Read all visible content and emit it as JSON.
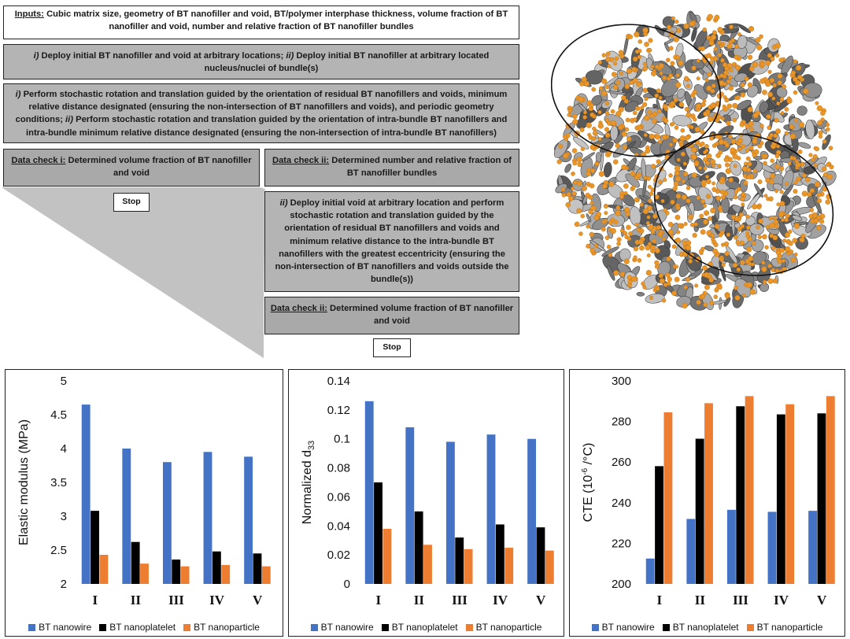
{
  "flow": {
    "inputs_label": "Inputs:",
    "inputs_text": " Cubic matrix size, geometry of BT nanofiller and void, BT/polymer interphase thickness, volume fraction of BT nanofiller and void, number and relative fraction of BT nanofiller bundles",
    "step1_a_num": "i)",
    "step1_a": " Deploy initial BT nanofiller and void at arbitrary locations; ",
    "step1_b_num": "ii)",
    "step1_b": " Deploy initial BT nanofiller at arbitrary located nucleus/nuclei of bundle(s)",
    "step2_a_num": "i)",
    "step2_a": " Perform stochastic rotation and translation guided by the orientation of residual BT nanofillers and voids, minimum relative distance designated (ensuring the non-intersection of BT nanofillers and voids), and periodic geometry conditions; ",
    "step2_b_num": "ii)",
    "step2_b": " Perform stochastic rotation and translation guided by the orientation of intra-bundle BT nanofillers and intra-bundle minimum relative distance designated (ensuring the non-intersection of intra-bundle BT nanofillers)",
    "check1_label": "Data check i:",
    "check1_text": " Determined volume fraction of BT nanofiller and void",
    "check2_label": "Data check ii:",
    "check2_text": " Determined number and relative fraction of BT nanofiller bundles",
    "step3_num": "ii)",
    "step3": " Deploy initial void at arbitrary location and perform stochastic rotation and translation guided by the orientation of residual BT nanofillers and voids and minimum relative distance to the intra-bundle BT nanofillers with the greatest eccentricity (ensuring the non-intersection of BT nanofillers and voids outside the bundle(s))",
    "check3_label": "Data check ii:",
    "check3_text": " Determined volume fraction of BT nanofiller and void",
    "stop1": "Stop",
    "stop2": "Stop"
  },
  "colors": {
    "nanowire": "#4472c4",
    "nanoplatelet": "#000000",
    "nanoparticle": "#ed7d31"
  },
  "chart_data": [
    {
      "type": "bar",
      "categories": [
        "I",
        "II",
        "III",
        "IV",
        "V"
      ],
      "ylabel": "Elastic modulus (MPa)",
      "ylim": [
        2,
        5
      ],
      "yticks": [
        "2",
        "2.5",
        "3",
        "3.5",
        "4",
        "4.5",
        "5"
      ],
      "series": [
        {
          "name": "BT nanowire",
          "values": [
            4.65,
            4.0,
            3.8,
            3.95,
            3.88
          ]
        },
        {
          "name": "BT nanoplatelet",
          "values": [
            3.08,
            2.62,
            2.36,
            2.48,
            2.45
          ]
        },
        {
          "name": "BT nanoparticle",
          "values": [
            2.43,
            2.3,
            2.26,
            2.28,
            2.26
          ]
        }
      ],
      "legend": "bottom"
    },
    {
      "type": "bar",
      "categories": [
        "I",
        "II",
        "III",
        "IV",
        "V"
      ],
      "ylabel": "Normalized d",
      "ylabel_sub": "33",
      "ylim": [
        0,
        0.14
      ],
      "yticks": [
        "0",
        "0.02",
        "0.04",
        "0.06",
        "0.08",
        "0.1",
        "0.12",
        "0.14"
      ],
      "series": [
        {
          "name": "BT nanowire",
          "values": [
            0.126,
            0.108,
            0.098,
            0.103,
            0.1
          ]
        },
        {
          "name": "BT nanoplatelet",
          "values": [
            0.07,
            0.05,
            0.032,
            0.041,
            0.039
          ]
        },
        {
          "name": "BT nanoparticle",
          "values": [
            0.038,
            0.027,
            0.024,
            0.025,
            0.023
          ]
        }
      ],
      "legend": "bottom"
    },
    {
      "type": "bar",
      "categories": [
        "I",
        "II",
        "III",
        "IV",
        "V"
      ],
      "ylabel": "CTE (10",
      "ylabel_sup": "-6",
      "ylabel_tail": " /°C)",
      "ylim": [
        200,
        300
      ],
      "yticks": [
        "200",
        "220",
        "240",
        "260",
        "280",
        "300"
      ],
      "series": [
        {
          "name": "BT nanowire",
          "values": [
            212.5,
            232,
            236.5,
            235.5,
            236
          ]
        },
        {
          "name": "BT nanoplatelet",
          "values": [
            258,
            271.5,
            287.5,
            283.5,
            284
          ]
        },
        {
          "name": "BT nanoparticle",
          "values": [
            284.5,
            289,
            292.5,
            288.5,
            292.5
          ]
        }
      ],
      "legend": "bottom"
    }
  ]
}
